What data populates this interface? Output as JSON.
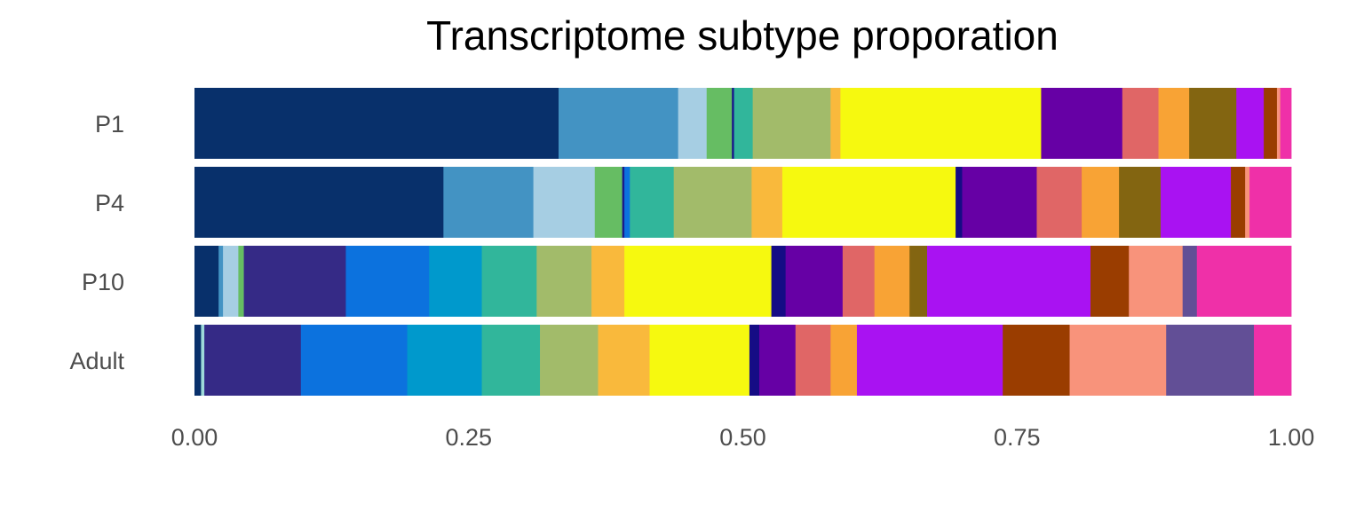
{
  "chart_data": {
    "type": "bar",
    "orientation": "horizontal",
    "stacked": true,
    "title": "Transcriptome subtype proporation",
    "xlabel": "",
    "ylabel": "",
    "xlim": [
      0,
      1
    ],
    "x_ticks": [
      "0.00",
      "0.25",
      "0.50",
      "0.75",
      "1.00"
    ],
    "grid": false,
    "legend": "none",
    "categories": [
      "P1",
      "P4",
      "P10",
      "Adult"
    ],
    "rows": [
      {
        "category": "P1",
        "segments": [
          {
            "color": "#08306b",
            "value": 0.332
          },
          {
            "color": "#4393c3",
            "value": 0.109
          },
          {
            "color": "#a6cee3",
            "value": 0.026
          },
          {
            "color": "#66bd63",
            "value": 0.023
          },
          {
            "color": "#1a1a8c",
            "value": 0.002
          },
          {
            "color": "#31b69b",
            "value": 0.017
          },
          {
            "color": "#a2bb6a",
            "value": 0.071
          },
          {
            "color": "#f9b93c",
            "value": 0.009
          },
          {
            "color": "#f6f90f",
            "value": 0.183
          },
          {
            "color": "#6600a5",
            "value": 0.074
          },
          {
            "color": "#e06666",
            "value": 0.033
          },
          {
            "color": "#f8a335",
            "value": 0.028
          },
          {
            "color": "#836511",
            "value": 0.043
          },
          {
            "color": "#a912f2",
            "value": 0.025
          },
          {
            "color": "#9a3d00",
            "value": 0.012
          },
          {
            "color": "#f8937b",
            "value": 0.003
          },
          {
            "color": "#ef30a8",
            "value": 0.01
          }
        ]
      },
      {
        "category": "P4",
        "segments": [
          {
            "color": "#08306b",
            "value": 0.227
          },
          {
            "color": "#4393c3",
            "value": 0.082
          },
          {
            "color": "#a6cee3",
            "value": 0.056
          },
          {
            "color": "#66bd63",
            "value": 0.025
          },
          {
            "color": "#1a1a8c",
            "value": 0.002
          },
          {
            "color": "#0c72de",
            "value": 0.005
          },
          {
            "color": "#31b69b",
            "value": 0.04
          },
          {
            "color": "#a2bb6a",
            "value": 0.071
          },
          {
            "color": "#f9b93c",
            "value": 0.028
          },
          {
            "color": "#f6f90f",
            "value": 0.158
          },
          {
            "color": "#150c85",
            "value": 0.006
          },
          {
            "color": "#6600a5",
            "value": 0.068
          },
          {
            "color": "#e06666",
            "value": 0.041
          },
          {
            "color": "#f8a335",
            "value": 0.034
          },
          {
            "color": "#836511",
            "value": 0.038
          },
          {
            "color": "#a912f2",
            "value": 0.064
          },
          {
            "color": "#9a3d00",
            "value": 0.013
          },
          {
            "color": "#f8937b",
            "value": 0.004
          },
          {
            "color": "#ef30a8",
            "value": 0.038
          }
        ]
      },
      {
        "category": "P10",
        "segments": [
          {
            "color": "#08306b",
            "value": 0.022
          },
          {
            "color": "#4393c3",
            "value": 0.004
          },
          {
            "color": "#a6cee3",
            "value": 0.014
          },
          {
            "color": "#66bd63",
            "value": 0.005
          },
          {
            "color": "#352a86",
            "value": 0.093
          },
          {
            "color": "#0c72de",
            "value": 0.076
          },
          {
            "color": "#0099cc",
            "value": 0.048
          },
          {
            "color": "#31b69b",
            "value": 0.05
          },
          {
            "color": "#a2bb6a",
            "value": 0.05
          },
          {
            "color": "#f9b93c",
            "value": 0.03
          },
          {
            "color": "#f6f90f",
            "value": 0.134
          },
          {
            "color": "#150c85",
            "value": 0.013
          },
          {
            "color": "#6600a5",
            "value": 0.052
          },
          {
            "color": "#e06666",
            "value": 0.029
          },
          {
            "color": "#f8a335",
            "value": 0.032
          },
          {
            "color": "#836511",
            "value": 0.016
          },
          {
            "color": "#a912f2",
            "value": 0.149
          },
          {
            "color": "#9a3d00",
            "value": 0.035
          },
          {
            "color": "#f8937b",
            "value": 0.049
          },
          {
            "color": "#624f96",
            "value": 0.013
          },
          {
            "color": "#ef30a8",
            "value": 0.086
          }
        ]
      },
      {
        "category": "Adult",
        "segments": [
          {
            "color": "#08306b",
            "value": 0.006
          },
          {
            "color": "#9ed9d9",
            "value": 0.003
          },
          {
            "color": "#352a86",
            "value": 0.088
          },
          {
            "color": "#0c72de",
            "value": 0.097
          },
          {
            "color": "#0099cc",
            "value": 0.068
          },
          {
            "color": "#31b69b",
            "value": 0.053
          },
          {
            "color": "#a2bb6a",
            "value": 0.053
          },
          {
            "color": "#f9b93c",
            "value": 0.047
          },
          {
            "color": "#f6f90f",
            "value": 0.091
          },
          {
            "color": "#150c85",
            "value": 0.009
          },
          {
            "color": "#6600a5",
            "value": 0.033
          },
          {
            "color": "#e06666",
            "value": 0.032
          },
          {
            "color": "#f8a335",
            "value": 0.024
          },
          {
            "color": "#a912f2",
            "value": 0.133
          },
          {
            "color": "#9a3d00",
            "value": 0.061
          },
          {
            "color": "#f8937b",
            "value": 0.088
          },
          {
            "color": "#624f96",
            "value": 0.08
          },
          {
            "color": "#ef30a8",
            "value": 0.034
          }
        ]
      }
    ]
  }
}
